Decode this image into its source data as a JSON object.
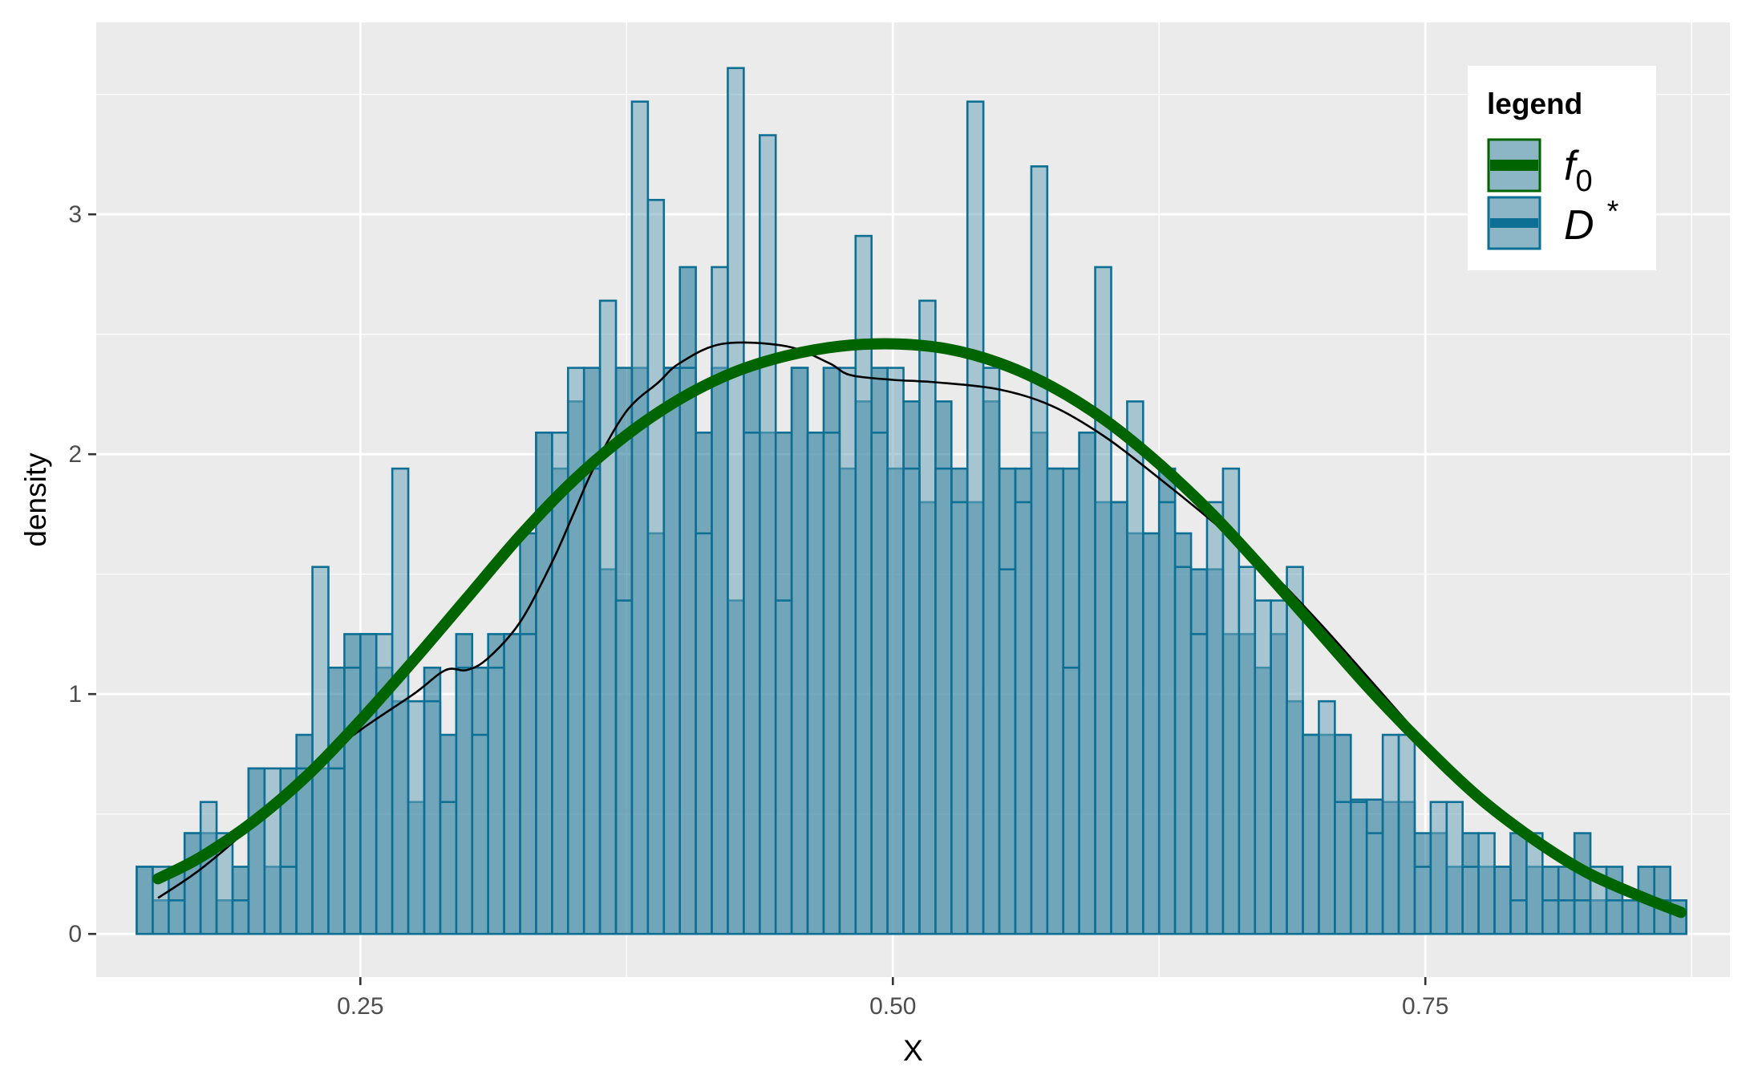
{
  "chart_data": {
    "type": "bar",
    "xlabel": "X",
    "ylabel": "density",
    "xlim": [
      0.126,
      0.893
    ],
    "ylim": [
      -0.18,
      3.8
    ],
    "x_ticks": [
      0.25,
      0.5,
      0.75
    ],
    "x_tick_labels": [
      "0.25",
      "0.50",
      "0.75"
    ],
    "y_ticks": [
      0,
      1,
      2,
      3
    ],
    "y_tick_labels": [
      "0",
      "1",
      "2",
      "3"
    ],
    "grid": true,
    "legend_position": "top-right",
    "legend": {
      "title": "legend",
      "items": [
        {
          "key": "f0",
          "base": "f",
          "sub": "0",
          "sup": ""
        },
        {
          "key": "Dstar",
          "base": "D",
          "sub": "",
          "sup": "*"
        }
      ]
    },
    "colors": {
      "panel": "#EBEBEB",
      "grid": "#FFFFFF",
      "bar_fill_a": "#126F92",
      "bar_fill_b": "#6FA6B9",
      "bar_outline": "#0E6F95",
      "f0_line": "#006400",
      "kde_line": "#000000"
    },
    "histograms": [
      {
        "name": "histogram A",
        "binwidth": 0.0075,
        "bin_starts": [
          0.145,
          0.1525,
          0.16,
          0.1675,
          0.175,
          0.1825,
          0.19,
          0.1975,
          0.205,
          0.2125,
          0.22,
          0.2275,
          0.235,
          0.2425,
          0.25,
          0.2575,
          0.265,
          0.2725,
          0.28,
          0.2875,
          0.295,
          0.3025,
          0.31,
          0.3175,
          0.325,
          0.3325,
          0.34,
          0.3475,
          0.355,
          0.3625,
          0.37,
          0.3775,
          0.385,
          0.3925,
          0.4,
          0.4075,
          0.415,
          0.4225,
          0.43,
          0.4375,
          0.445,
          0.4525,
          0.46,
          0.4675,
          0.475,
          0.4825,
          0.49,
          0.4975,
          0.505,
          0.5125,
          0.52,
          0.5275,
          0.535,
          0.5425,
          0.55,
          0.5575,
          0.565,
          0.5725,
          0.58,
          0.5875,
          0.595,
          0.6025,
          0.61,
          0.6175,
          0.625,
          0.6325,
          0.64,
          0.6475,
          0.655,
          0.6625,
          0.67,
          0.6775,
          0.685,
          0.6925,
          0.7,
          0.7075,
          0.715,
          0.7225,
          0.73,
          0.7375,
          0.745,
          0.7525,
          0.76,
          0.7675,
          0.775,
          0.7825,
          0.79,
          0.7975,
          0.805,
          0.8125,
          0.82,
          0.8275,
          0.835,
          0.8425,
          0.85,
          0.8575,
          0.865
        ],
        "values": [
          0.28,
          0.14,
          0.28,
          0.42,
          0.42,
          0.14,
          0.28,
          0.69,
          0.28,
          0.69,
          0.83,
          0.69,
          1.11,
          1.25,
          1.25,
          1.11,
          0.97,
          0.55,
          1.11,
          0.83,
          1.25,
          1.11,
          1.25,
          1.25,
          1.67,
          2.09,
          1.94,
          2.22,
          2.36,
          1.52,
          2.36,
          2.36,
          1.67,
          2.36,
          2.78,
          2.09,
          2.36,
          1.39,
          2.36,
          2.09,
          2.09,
          2.36,
          2.09,
          2.36,
          1.94,
          2.22,
          2.36,
          1.94,
          2.22,
          1.8,
          2.22,
          1.94,
          1.8,
          2.22,
          1.94,
          1.94,
          2.09,
          1.94,
          1.94,
          2.09,
          1.8,
          1.8,
          1.67,
          1.67,
          1.94,
          1.67,
          1.52,
          1.52,
          1.25,
          1.25,
          1.11,
          1.25,
          0.97,
          0.83,
          0.83,
          0.83,
          0.56,
          0.56,
          0.55,
          0.55,
          0.42,
          0.42,
          0.28,
          0.42,
          0.28,
          0.28,
          0.42,
          0.28,
          0.28,
          0.28,
          0.42,
          0.14,
          0.28,
          0.14,
          0.28,
          0.28,
          0.14,
          0.14
        ]
      },
      {
        "name": "histogram B",
        "binwidth": 0.0075,
        "bin_starts": [
          0.145,
          0.1525,
          0.16,
          0.1675,
          0.175,
          0.1825,
          0.19,
          0.1975,
          0.205,
          0.2125,
          0.22,
          0.2275,
          0.235,
          0.2425,
          0.25,
          0.2575,
          0.265,
          0.2725,
          0.28,
          0.2875,
          0.295,
          0.3025,
          0.31,
          0.3175,
          0.325,
          0.3325,
          0.34,
          0.3475,
          0.355,
          0.3625,
          0.37,
          0.3775,
          0.385,
          0.3925,
          0.4,
          0.4075,
          0.415,
          0.4225,
          0.43,
          0.4375,
          0.445,
          0.4525,
          0.46,
          0.4675,
          0.475,
          0.4825,
          0.49,
          0.4975,
          0.505,
          0.5125,
          0.52,
          0.5275,
          0.535,
          0.5425,
          0.55,
          0.5575,
          0.565,
          0.5725,
          0.58,
          0.5875,
          0.595,
          0.6025,
          0.61,
          0.6175,
          0.625,
          0.6325,
          0.64,
          0.6475,
          0.655,
          0.6625,
          0.67,
          0.6775,
          0.685,
          0.6925,
          0.7,
          0.7075,
          0.715,
          0.7225,
          0.73,
          0.7375,
          0.745,
          0.7525,
          0.76,
          0.7675,
          0.775,
          0.7825,
          0.79,
          0.7975,
          0.805,
          0.8125,
          0.82,
          0.8275,
          0.835,
          0.8425,
          0.85,
          0.8575,
          0.865
        ],
        "values": [
          0.28,
          0.28,
          0.14,
          0.42,
          0.55,
          0.42,
          0.14,
          0.69,
          0.69,
          0.28,
          0.69,
          1.53,
          0.69,
          1.11,
          1.25,
          1.25,
          1.94,
          0.97,
          0.97,
          0.55,
          1.11,
          0.83,
          1.11,
          1.25,
          1.25,
          2.09,
          2.09,
          2.36,
          1.94,
          2.64,
          1.39,
          3.47,
          3.06,
          2.36,
          2.36,
          1.67,
          2.78,
          3.61,
          2.09,
          3.33,
          1.39,
          2.36,
          2.09,
          2.09,
          2.36,
          2.91,
          2.09,
          2.36,
          1.94,
          2.64,
          1.94,
          1.8,
          3.47,
          2.36,
          1.52,
          1.8,
          3.2,
          1.94,
          1.11,
          2.09,
          2.78,
          1.8,
          2.22,
          1.67,
          1.8,
          1.53,
          1.25,
          1.8,
          1.94,
          1.53,
          1.39,
          1.39,
          1.53,
          0.83,
          0.97,
          0.55,
          0.55,
          0.42,
          0.83,
          0.83,
          0.28,
          0.55,
          0.55,
          0.28,
          0.42,
          0.28,
          0.14,
          0.42,
          0.14,
          0.14,
          0.14,
          0.28,
          0.14,
          0.14,
          0.14,
          0.14,
          0.14,
          0.14
        ]
      }
    ],
    "f0_curve": {
      "name": "f0",
      "x": [
        0.155,
        0.175,
        0.2,
        0.225,
        0.25,
        0.275,
        0.3,
        0.325,
        0.35,
        0.375,
        0.4,
        0.425,
        0.45,
        0.475,
        0.5,
        0.525,
        0.55,
        0.575,
        0.6,
        0.625,
        0.65,
        0.675,
        0.7,
        0.725,
        0.75,
        0.775,
        0.8,
        0.825,
        0.85,
        0.87
      ],
      "y": [
        0.23,
        0.32,
        0.47,
        0.66,
        0.89,
        1.14,
        1.4,
        1.66,
        1.89,
        2.08,
        2.23,
        2.34,
        2.41,
        2.45,
        2.46,
        2.44,
        2.38,
        2.28,
        2.14,
        1.96,
        1.75,
        1.51,
        1.26,
        1.01,
        0.78,
        0.57,
        0.4,
        0.26,
        0.16,
        0.09
      ]
    },
    "kde_curve": {
      "name": "kernel density estimate",
      "x": [
        0.155,
        0.175,
        0.2,
        0.225,
        0.25,
        0.275,
        0.29,
        0.3,
        0.31,
        0.325,
        0.34,
        0.35,
        0.36,
        0.375,
        0.39,
        0.4,
        0.42,
        0.45,
        0.47,
        0.48,
        0.5,
        0.52,
        0.55,
        0.575,
        0.6,
        0.625,
        0.65,
        0.675,
        0.7,
        0.725,
        0.75,
        0.775,
        0.8,
        0.825,
        0.85,
        0.87
      ],
      "y": [
        0.15,
        0.27,
        0.46,
        0.68,
        0.85,
        1.0,
        1.1,
        1.1,
        1.15,
        1.3,
        1.55,
        1.75,
        1.95,
        2.18,
        2.3,
        2.38,
        2.46,
        2.45,
        2.38,
        2.33,
        2.31,
        2.3,
        2.27,
        2.2,
        2.07,
        1.9,
        1.72,
        1.53,
        1.3,
        1.05,
        0.8,
        0.58,
        0.4,
        0.26,
        0.16,
        0.1
      ]
    }
  }
}
